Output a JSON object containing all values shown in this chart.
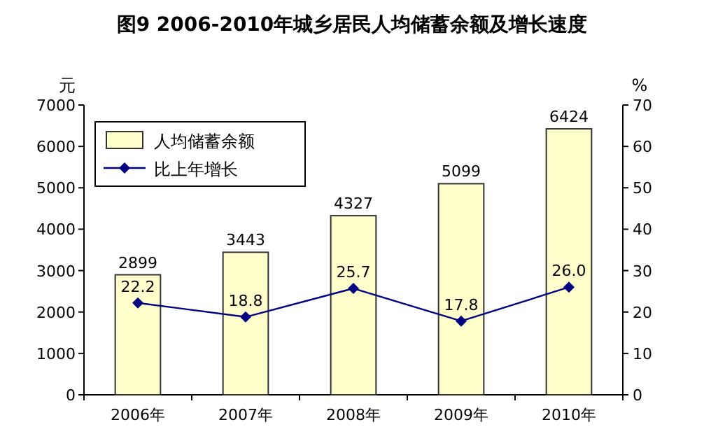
{
  "chart_data": {
    "type": "bar",
    "title": "图9 2006-2010年城乡居民人均储蓄余额及增长速度",
    "ylabel": "元",
    "y2label": "%",
    "categories": [
      "2006年",
      "2007年",
      "2008年",
      "2009年",
      "2010年"
    ],
    "series": [
      {
        "name": "人均储蓄余额",
        "color": "#ffffcc",
        "values": [
          2899,
          3443,
          4327,
          5099,
          6424
        ]
      },
      {
        "name": "比上年增长",
        "type": "line",
        "axis": "y2",
        "color": "#000080",
        "marker": "diamond",
        "values": [
          22.2,
          18.8,
          25.7,
          17.8,
          26.0
        ],
        "value_labels": [
          "22.2",
          "18.8",
          "25.7",
          "17.8",
          "26.0"
        ]
      }
    ],
    "data_labels": true,
    "ylim": [
      0,
      7000
    ],
    "yticks": [
      0,
      1000,
      2000,
      3000,
      4000,
      5000,
      6000,
      7000
    ],
    "y2lim": [
      0,
      70
    ],
    "y2ticks": [
      0,
      10,
      20,
      30,
      40,
      50,
      60,
      70
    ],
    "legend": "top left",
    "grid": false
  }
}
